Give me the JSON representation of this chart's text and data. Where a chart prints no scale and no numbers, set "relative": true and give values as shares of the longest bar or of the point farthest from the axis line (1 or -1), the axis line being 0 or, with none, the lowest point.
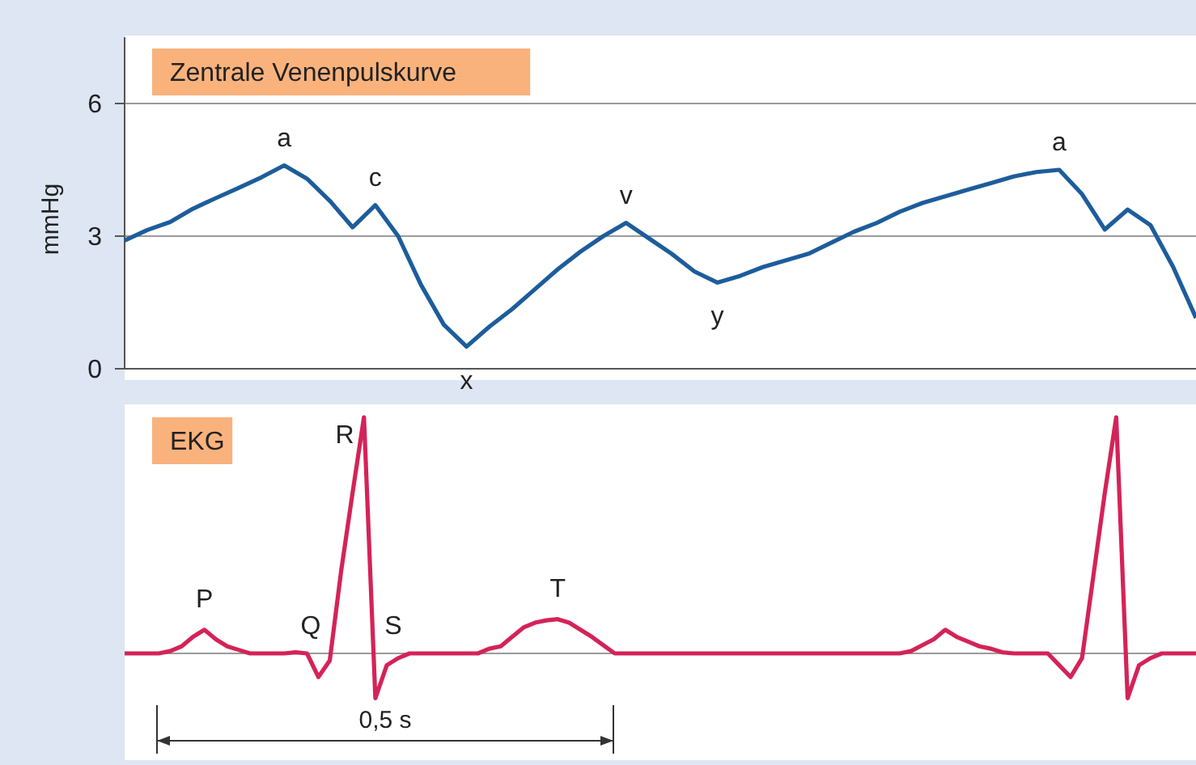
{
  "chart_data": [
    {
      "type": "line",
      "title": "Zentrale Venenpulskurve",
      "ylabel": "mmHg",
      "categories": [
        null,
        null,
        null,
        null,
        null,
        null,
        null,
        null,
        null,
        null,
        null,
        null,
        null,
        null,
        null,
        null,
        null,
        null,
        null,
        null,
        null,
        null,
        null,
        null,
        null,
        null,
        null,
        null,
        null,
        null,
        null,
        null,
        null,
        null,
        null,
        null,
        null,
        null,
        null,
        null,
        null,
        null,
        null,
        null,
        null,
        null,
        null,
        null
      ],
      "ylim": [
        0,
        7.5
      ],
      "yticks": [
        0,
        3,
        6
      ],
      "grid": "y",
      "tick_labels": "y",
      "series": [
        {
          "color": "#1d5d9b",
          "values": [
            2.9,
            3.14,
            3.32,
            3.62,
            3.86,
            4.09,
            4.33,
            4.6,
            4.3,
            3.8,
            3.2,
            3.7,
            3.0,
            1.9,
            1.0,
            0.5,
            0.95,
            1.35,
            1.8,
            2.25,
            2.65,
            3.0,
            3.3,
            2.95,
            2.6,
            2.2,
            1.95,
            2.1,
            2.3,
            2.45,
            2.6,
            2.85,
            3.1,
            3.3,
            3.55,
            3.75,
            3.9,
            4.05,
            4.2,
            4.35,
            4.45,
            4.5,
            3.95,
            3.15,
            3.6,
            3.25,
            2.3,
            1.15
          ]
        }
      ],
      "annotations": [
        {
          "text": "a",
          "y": 4.6
        },
        {
          "text": "c",
          "y": 3.7
        },
        {
          "text": "x",
          "y": 0.5
        },
        {
          "text": "v",
          "y": 3.3
        },
        {
          "text": "y",
          "y": 1.95
        },
        {
          "text": "a",
          "y": 4.5
        }
      ]
    },
    {
      "type": "line",
      "title": "EKG",
      "relative": true,
      "categories": [
        null,
        null,
        null,
        null,
        null,
        null,
        null,
        null,
        null,
        null,
        null,
        null,
        null,
        null,
        null,
        null,
        null,
        null,
        null,
        null,
        null,
        null,
        null,
        null,
        null,
        null,
        null,
        null,
        null,
        null,
        null,
        null,
        null,
        null,
        null,
        null,
        null,
        null,
        null,
        null,
        null,
        null,
        null,
        null,
        null,
        null,
        null,
        null,
        null,
        null,
        null,
        null,
        null,
        null,
        null,
        null,
        null,
        null,
        null,
        null,
        null,
        null,
        null,
        null,
        null,
        null,
        null,
        null,
        null,
        null,
        null,
        null,
        null,
        null,
        null,
        null,
        null,
        null,
        null,
        null,
        null,
        null,
        null,
        null,
        null,
        null,
        null,
        null,
        null,
        null,
        null,
        null,
        null,
        null,
        null
      ],
      "tick_labels": false,
      "series": [
        {
          "color": "#d42358",
          "values": [
            0,
            0,
            0,
            0,
            0.01,
            0.03,
            0.07,
            0.1,
            0.06,
            0.03,
            0.015,
            0,
            0,
            0,
            0,
            0.005,
            0,
            -0.1,
            -0.03,
            0.35,
            0.68,
            1,
            -0.19,
            -0.05,
            -0.02,
            0,
            0,
            0,
            0,
            0,
            0,
            0,
            0.02,
            0.03,
            0.07,
            0.11,
            0.13,
            0.14,
            0.145,
            0.13,
            0.1,
            0.07,
            0.035,
            0,
            0,
            0,
            0,
            0,
            0,
            0,
            0,
            0,
            0,
            0,
            0,
            0,
            0,
            0,
            0,
            0,
            0,
            0,
            0,
            0,
            0,
            0,
            0,
            0,
            0,
            0.01,
            0.035,
            0.06,
            0.1,
            0.07,
            0.05,
            0.03,
            0.02,
            0.005,
            0,
            0,
            0,
            0,
            -0.05,
            -0.1,
            -0.02,
            0.33,
            0.68,
            1,
            -0.19,
            -0.05,
            -0.02,
            0,
            0,
            0,
            0
          ]
        }
      ],
      "annotations": [
        {
          "text": "P",
          "y": 0.1
        },
        "Q",
        "R",
        "S",
        {
          "text": "T",
          "y": 0.145
        },
        "0,5 s"
      ]
    }
  ]
}
